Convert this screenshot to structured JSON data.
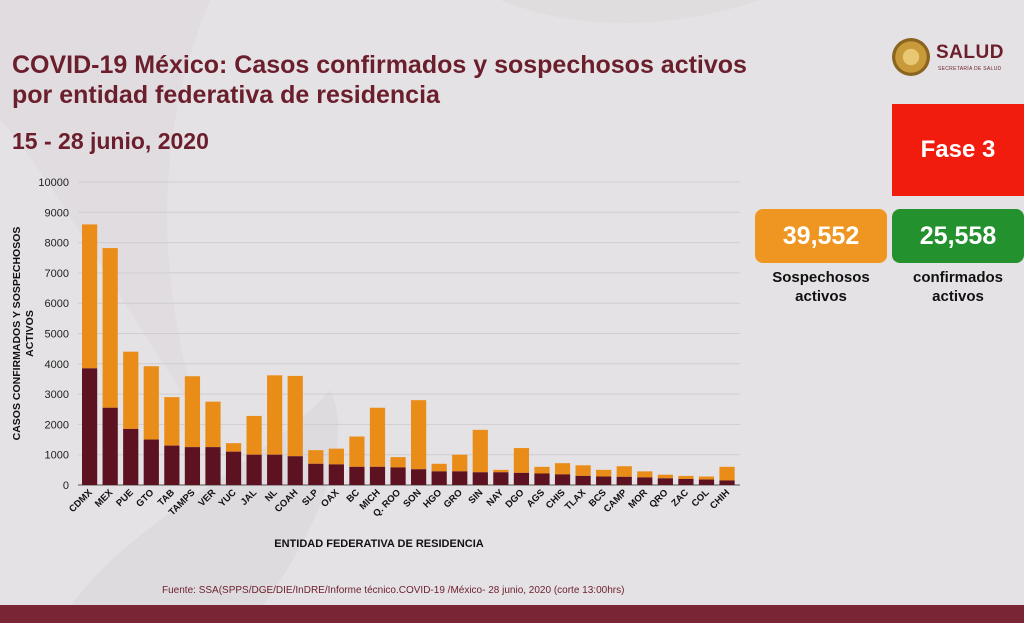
{
  "header": {
    "title_line1": "COVID-19 México: Casos confirmados y sospechosos activos",
    "title_line2": "por entidad federativa de residencia",
    "date_range": "15 - 28 junio, 2020"
  },
  "logo": {
    "word": "SALUD",
    "subtitle": "SECRETARÍA DE SALUD"
  },
  "phase": {
    "label": "Fase 3",
    "color": "#f21c0e"
  },
  "kpis": {
    "suspected": {
      "value": "39,552",
      "label_line1": "Sospechosos",
      "label_line2": "activos",
      "color": "#ef9521"
    },
    "confirmed": {
      "value": "25,558",
      "label_line1": "confirmados",
      "label_line2": "activos",
      "color": "#24912f"
    }
  },
  "footer": {
    "source": "Fuente: SSA(SPPS/DGE/DIE/InDRE/Informe técnico.COVID-19 /México- 28 junio, 2020 (corte 13:00hrs)"
  },
  "colors": {
    "confirmed": "#5c1220",
    "suspected": "#ea8d18",
    "title": "#6b1e2c",
    "grid": "#cfcdd0"
  },
  "chart_data": {
    "type": "bar",
    "stacked": true,
    "xlabel": "ENTIDAD FEDERATIVA DE RESIDENCIA",
    "ylabel_line1": "CASOS CONFIRMADOS Y SOSPECHOSOS",
    "ylabel_line2": "ACTIVOS",
    "ylim": [
      0,
      10000
    ],
    "yticks": [
      "0",
      "1000",
      "2000",
      "3000",
      "4000",
      "5000",
      "6000",
      "7000",
      "8000",
      "9000",
      "10000"
    ],
    "grid": true,
    "categories": [
      "CDMX",
      "MEX",
      "PUE",
      "GTO",
      "TAB",
      "TAMPS",
      "VER",
      "YUC",
      "JAL",
      "NL",
      "COAH",
      "SLP",
      "OAX",
      "BC",
      "MICH",
      "Q. ROO",
      "SON",
      "HGO",
      "GRO",
      "SIN",
      "NAY",
      "DGO",
      "AGS",
      "CHIS",
      "TLAX",
      "BCS",
      "CAMP",
      "MOR",
      "QRO",
      "ZAC",
      "COL",
      "CHIH"
    ],
    "confirmed": [
      3850,
      2550,
      1850,
      1500,
      1300,
      1250,
      1250,
      1100,
      1000,
      1000,
      950,
      700,
      680,
      600,
      600,
      580,
      520,
      450,
      450,
      420,
      420,
      400,
      380,
      350,
      300,
      280,
      270,
      250,
      220,
      200,
      180,
      150
    ],
    "total": [
      8600,
      7820,
      4400,
      3920,
      2900,
      3590,
      2750,
      1380,
      2280,
      3620,
      3600,
      1150,
      1200,
      1600,
      2550,
      920,
      2800,
      700,
      1000,
      1820,
      500,
      1220,
      600,
      720,
      650,
      500,
      620,
      450,
      340,
      300,
      280,
      600
    ]
  }
}
